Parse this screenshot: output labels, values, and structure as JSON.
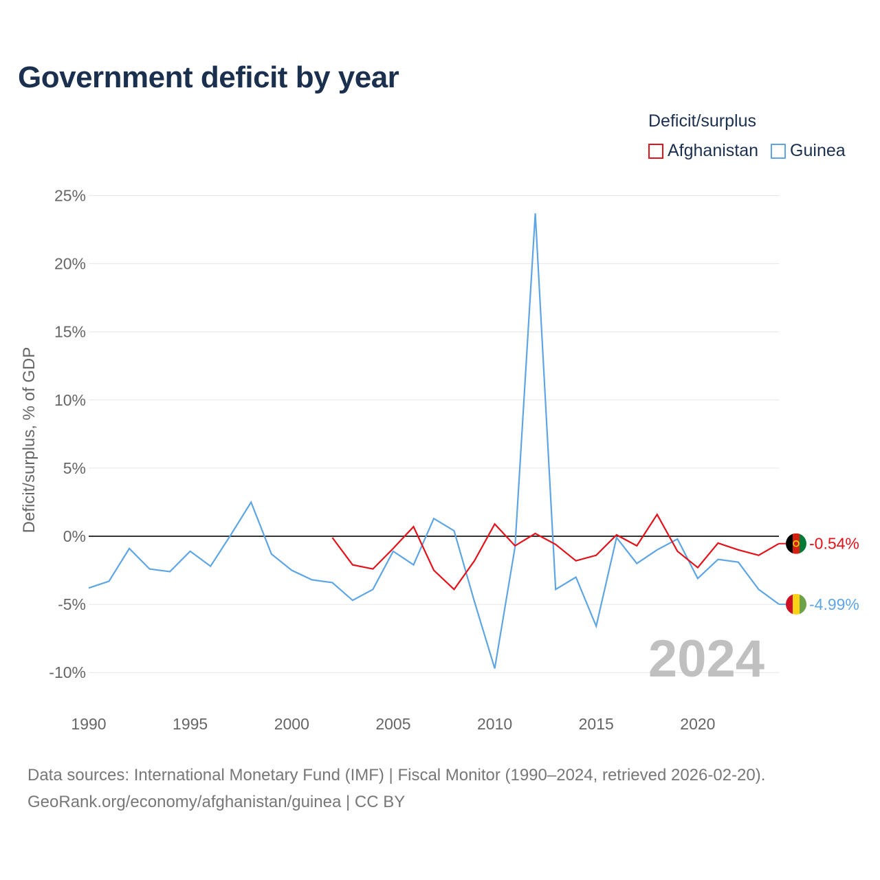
{
  "title": "Government deficit by year",
  "legend": {
    "title": "Deficit/surplus",
    "items": [
      {
        "label": "Afghanistan",
        "color": "#e3121a"
      },
      {
        "label": "Guinea",
        "color": "#5ea5e4"
      }
    ]
  },
  "chart_data": {
    "type": "line",
    "ylabel": "Deficit/surplus, % of GDP",
    "xlabel": "",
    "xlim": [
      1990,
      2024
    ],
    "ylim": [
      -12,
      25
    ],
    "x_ticks": [
      1990,
      1995,
      2000,
      2005,
      2010,
      2015,
      2020
    ],
    "y_ticks": [
      25,
      20,
      15,
      10,
      5,
      0,
      -5,
      -10
    ],
    "y_tick_labels": [
      "25%",
      "20%",
      "15%",
      "10%",
      "5%",
      "0%",
      "-5%",
      "-10%"
    ],
    "year_watermark": "2024",
    "series": [
      {
        "name": "Afghanistan",
        "color": "#e3121a",
        "end_label": "-0.54%",
        "x": [
          2002,
          2003,
          2004,
          2005,
          2006,
          2007,
          2008,
          2009,
          2010,
          2011,
          2012,
          2013,
          2014,
          2015,
          2016,
          2017,
          2018,
          2019,
          2020,
          2021,
          2022,
          2023,
          2024
        ],
        "values": [
          -0.1,
          -2.1,
          -2.4,
          -0.9,
          0.7,
          -2.5,
          -3.9,
          -1.8,
          0.9,
          -0.7,
          0.2,
          -0.6,
          -1.8,
          -1.4,
          0.1,
          -0.7,
          1.6,
          -1.1,
          -2.3,
          -0.5,
          -1.0,
          -1.4,
          -0.54
        ]
      },
      {
        "name": "Guinea",
        "color": "#5ea5e4",
        "end_label": "-4.99%",
        "x": [
          1990,
          1991,
          1992,
          1993,
          1994,
          1995,
          1996,
          1997,
          1998,
          1999,
          2000,
          2001,
          2002,
          2003,
          2004,
          2005,
          2006,
          2007,
          2008,
          2009,
          2010,
          2011,
          2012,
          2013,
          2014,
          2015,
          2016,
          2017,
          2018,
          2019,
          2020,
          2021,
          2022,
          2023,
          2024
        ],
        "values": [
          -3.8,
          -3.3,
          -0.9,
          -2.4,
          -2.6,
          -1.1,
          -2.2,
          0.1,
          2.5,
          -1.3,
          -2.5,
          -3.2,
          -3.4,
          -4.7,
          -3.9,
          -1.1,
          -2.1,
          1.3,
          0.4,
          -4.8,
          -9.7,
          -0.8,
          23.7,
          -3.9,
          -3.0,
          -6.6,
          -0.1,
          -2.0,
          -1.0,
          -0.2,
          -3.1,
          -1.7,
          -1.9,
          -3.9,
          -4.99
        ]
      }
    ]
  },
  "footer": {
    "line1": "Data sources: International Monetary Fund (IMF) | Fiscal Monitor (1990–2024, retrieved 2026-02-20).",
    "line2": "GeoRank.org/economy/afghanistan/guinea | CC BY"
  }
}
